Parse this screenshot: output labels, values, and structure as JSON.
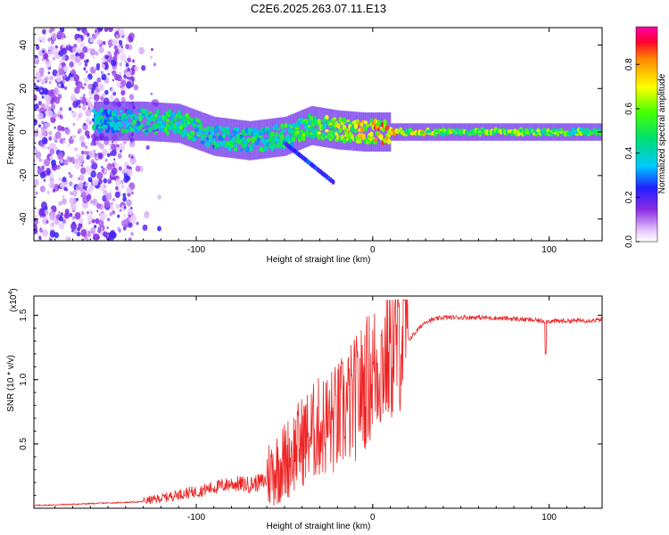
{
  "title": "C2E6.2025.263.07.11.E13",
  "colors": {
    "snr_line": "#ee2222",
    "frame": "#000000"
  },
  "chart_data": [
    {
      "type": "heatmap",
      "xlabel": "Height of straight line (km)",
      "ylabel": "Frequency (Hz)",
      "xlim": [
        -192,
        130
      ],
      "ylim": [
        -50,
        48
      ],
      "xticks": [
        -100,
        0,
        100
      ],
      "xtick_labels": [
        "-100",
        "0",
        "100"
      ],
      "yticks": [
        -40,
        -20,
        0,
        20,
        40
      ],
      "ytick_labels": [
        "-40",
        "-20",
        "0",
        "20",
        "40"
      ],
      "colorbar": {
        "label": "Normalized spectral amplitude",
        "range": [
          0,
          0.97
        ],
        "ticks": [
          0,
          0.2,
          0.4,
          0.6,
          0.8
        ],
        "tick_labels": [
          "0.0",
          "0.2",
          "0.4",
          "0.6",
          "0.8"
        ]
      },
      "ridge": {
        "description_points_x_km": [
          -155,
          -130,
          -110,
          -90,
          -70,
          -50,
          -35,
          -20,
          -5,
          10,
          40,
          130
        ],
        "center_hz": [
          5,
          5,
          4,
          -2,
          -4,
          -2,
          3,
          1,
          0,
          0,
          0,
          0
        ],
        "peak_amplitude": [
          0.45,
          0.55,
          0.6,
          0.5,
          0.55,
          0.55,
          0.65,
          0.75,
          0.85,
          0.9,
          0.7,
          0.65
        ]
      },
      "noise_region_x_km": [
        -192,
        -130
      ]
    },
    {
      "type": "line",
      "xlabel": "Height of straight line (km)",
      "ylabel": "SNR (10 * v/v)",
      "y_scale_label": "(x10",
      "y_scale_exp": "4",
      "y_scale_close": ")",
      "xlim": [
        -192,
        130
      ],
      "ylim": [
        0,
        1.65
      ],
      "xticks": [
        -100,
        0,
        100
      ],
      "xtick_labels": [
        "-100",
        "0",
        "100"
      ],
      "yticks": [
        0.5,
        1.0,
        1.5
      ],
      "ytick_labels": [
        "0.5",
        "1.0",
        "1.5"
      ],
      "series": [
        {
          "name": "SNR",
          "x": [
            -192,
            -170,
            -150,
            -130,
            -120,
            -110,
            -100,
            -90,
            -80,
            -70,
            -60,
            -50,
            -40,
            -30,
            -20,
            -10,
            0,
            10,
            20,
            30,
            40,
            60,
            80,
            100,
            130
          ],
          "y": [
            0.02,
            0.03,
            0.04,
            0.05,
            0.07,
            0.1,
            0.12,
            0.15,
            0.18,
            0.17,
            0.2,
            0.3,
            0.45,
            0.55,
            0.6,
            0.75,
            0.95,
            1.1,
            1.3,
            1.45,
            1.48,
            1.48,
            1.47,
            1.45,
            1.46
          ]
        }
      ]
    }
  ]
}
